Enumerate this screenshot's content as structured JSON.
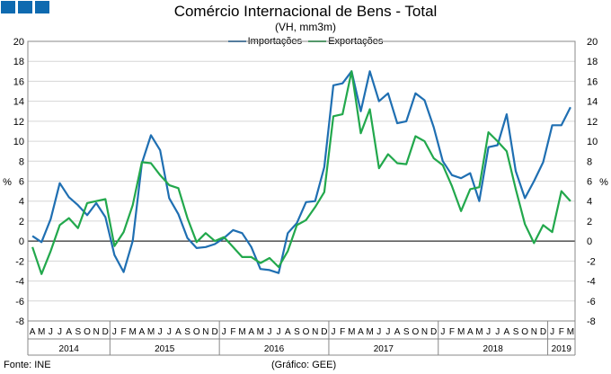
{
  "header": {
    "title": "Comércio Internacional de Bens - Total",
    "subtitle": "(VH, mm3m)"
  },
  "logo": {
    "icon": "ine-logo-icon",
    "color": "#0e6ab0"
  },
  "footer": {
    "source": "Fonte: INE",
    "credit": "(Gráfico: GEE)"
  },
  "chart_data": {
    "type": "line",
    "title": "Comércio Internacional de Bens - Total",
    "subtitle": "(VH, mm3m)",
    "ylabel": "%",
    "ylim": [
      -8,
      20
    ],
    "yticks": [
      -8,
      -6,
      -4,
      -2,
      0,
      2,
      4,
      6,
      8,
      10,
      12,
      14,
      16,
      18,
      20
    ],
    "grid": true,
    "legend_position": "top",
    "x": [
      "2014-04",
      "2014-05",
      "2014-06",
      "2014-07",
      "2014-08",
      "2014-09",
      "2014-10",
      "2014-11",
      "2014-12",
      "2015-01",
      "2015-02",
      "2015-03",
      "2015-04",
      "2015-05",
      "2015-06",
      "2015-07",
      "2015-08",
      "2015-09",
      "2015-10",
      "2015-11",
      "2015-12",
      "2016-01",
      "2016-02",
      "2016-03",
      "2016-04",
      "2016-05",
      "2016-06",
      "2016-07",
      "2016-08",
      "2016-09",
      "2016-10",
      "2016-11",
      "2016-12",
      "2017-01",
      "2017-02",
      "2017-03",
      "2017-04",
      "2017-05",
      "2017-06",
      "2017-07",
      "2017-08",
      "2017-09",
      "2017-10",
      "2017-11",
      "2017-12",
      "2018-01",
      "2018-02",
      "2018-03",
      "2018-04",
      "2018-05",
      "2018-06",
      "2018-07",
      "2018-08",
      "2018-09",
      "2018-10",
      "2018-11",
      "2018-12",
      "2019-01",
      "2019-02",
      "2019-03"
    ],
    "month_labels": [
      "A",
      "M",
      "J",
      "J",
      "A",
      "S",
      "O",
      "N",
      "D",
      "J",
      "F",
      "M",
      "A",
      "M",
      "J",
      "J",
      "A",
      "S",
      "O",
      "N",
      "D",
      "J",
      "F",
      "M",
      "A",
      "M",
      "J",
      "J",
      "A",
      "S",
      "O",
      "N",
      "D",
      "J",
      "F",
      "M",
      "A",
      "M",
      "J",
      "J",
      "A",
      "S",
      "O",
      "N",
      "D",
      "J",
      "F",
      "M",
      "A",
      "M",
      "J",
      "J",
      "A",
      "S",
      "O",
      "N",
      "D",
      "J",
      "F",
      "M"
    ],
    "years": [
      {
        "label": "2014",
        "start": 0,
        "end": 8
      },
      {
        "label": "2015",
        "start": 9,
        "end": 20
      },
      {
        "label": "2016",
        "start": 21,
        "end": 32
      },
      {
        "label": "2017",
        "start": 33,
        "end": 44
      },
      {
        "label": "2018",
        "start": 45,
        "end": 56
      },
      {
        "label": "2019",
        "start": 57,
        "end": 59
      }
    ],
    "series": [
      {
        "name": "Importações",
        "color": "#1f6fb2",
        "values": [
          0.5,
          -0.1,
          2.2,
          5.8,
          4.4,
          3.6,
          2.6,
          3.8,
          2.4,
          -1.4,
          -3.1,
          0.0,
          7.8,
          10.6,
          9.1,
          4.3,
          2.7,
          0.3,
          -0.7,
          -0.6,
          -0.3,
          0.3,
          1.1,
          0.8,
          -0.6,
          -2.8,
          -2.9,
          -3.2,
          0.8,
          1.8,
          3.9,
          4.0,
          7.4,
          15.6,
          15.8,
          17.0,
          13.0,
          17.0,
          14.0,
          14.8,
          11.8,
          12.0,
          14.8,
          14.1,
          11.4,
          8.0,
          6.6,
          6.3,
          6.8,
          4.0,
          9.4,
          9.6,
          12.7,
          7.0,
          4.3,
          6.0,
          7.9,
          11.6,
          11.6,
          13.4
        ]
      },
      {
        "name": "Exportações",
        "color": "#22a84c",
        "values": [
          -0.6,
          -3.3,
          -1.0,
          1.6,
          2.3,
          1.3,
          3.8,
          4.0,
          4.2,
          -0.5,
          0.9,
          3.6,
          7.9,
          7.8,
          6.6,
          5.6,
          5.3,
          2.3,
          -0.1,
          0.8,
          0.0,
          0.4,
          -0.6,
          -1.6,
          -1.6,
          -2.2,
          -1.7,
          -2.6,
          -1.0,
          1.6,
          2.1,
          3.4,
          4.9,
          12.5,
          12.7,
          17.0,
          10.8,
          13.2,
          7.3,
          8.7,
          7.8,
          7.7,
          10.5,
          10.0,
          8.3,
          7.6,
          5.5,
          3.0,
          5.2,
          5.4,
          10.9,
          10.0,
          9.0,
          5.2,
          1.7,
          -0.2,
          1.6,
          0.9,
          5.0,
          4.0
        ]
      }
    ]
  }
}
